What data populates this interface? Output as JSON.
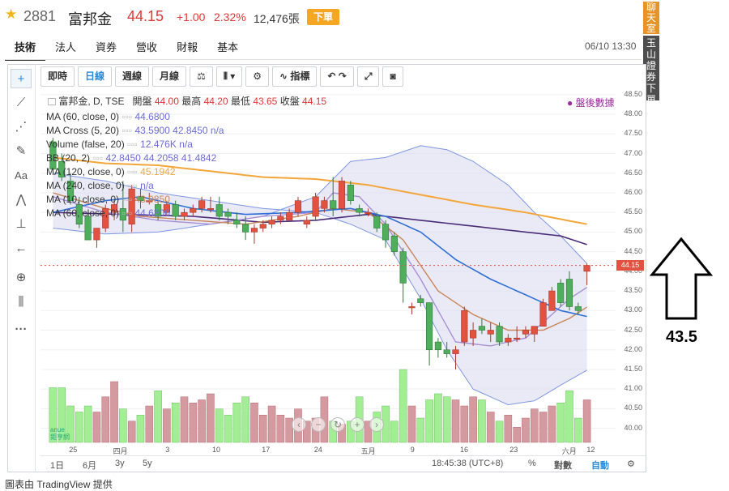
{
  "header": {
    "symbol_code": "2881",
    "symbol_name": "富邦金",
    "price": "44.15",
    "change": "+1.00",
    "change_pct": "2.32%",
    "volume": "12,476張",
    "order_button": "下單"
  },
  "tabs": [
    "技術",
    "法人",
    "資券",
    "營收",
    "財報",
    "基本"
  ],
  "datetime": "06/10 13:30",
  "side_buttons": {
    "chat": "聊天室",
    "broker": "玉山證券下單"
  },
  "toolbar": {
    "intraday": "即時",
    "daily": "日線",
    "weekly": "週線",
    "monthly": "月線",
    "balance_icon": "balance-scale-icon",
    "candle_icon": "candlestick-icon",
    "settings_icon": "gear-icon",
    "indicators": "指標",
    "undo_icon": "undo-icon",
    "redo_icon": "redo-icon",
    "fullscreen_icon": "fullscreen-icon",
    "camera_icon": "camera-icon"
  },
  "legend": {
    "title": "富邦金, D, TSE",
    "open_label": "開盤",
    "open": "44.00",
    "high_label": "最高",
    "high": "44.20",
    "low_label": "最低",
    "low": "43.65",
    "close_label": "收盤",
    "close": "44.15",
    "rows": [
      {
        "name": "MA (60, close, 0)",
        "value": "44.6800"
      },
      {
        "name": "MA Cross (5, 20)",
        "value": "43.5900  42.8450  n/a"
      },
      {
        "name": "Volume (false, 20)",
        "value": "12.476K  n/a"
      },
      {
        "name": "BB (20, 2)",
        "value": "42.8450  44.2058  41.4842"
      },
      {
        "name": "MA (120, close, 0)",
        "value": "45.1942"
      },
      {
        "name": "MA (240, close, 0)",
        "value": "n/a"
      },
      {
        "name": "MA (10, close, 0)",
        "value": "43.0850"
      },
      {
        "name": "MA (60, close, 0)",
        "value": "44.6800"
      }
    ]
  },
  "post_market": "● 盤後數據",
  "price_axis": [
    "48.50",
    "48.00",
    "47.50",
    "47.00",
    "46.50",
    "46.00",
    "45.50",
    "45.00",
    "44.50",
    "44.00",
    "43.50",
    "43.00",
    "42.50",
    "42.00",
    "41.50",
    "41.00",
    "40.50",
    "40.00"
  ],
  "last_price_tag": "44.15",
  "time_axis": [
    "25",
    "四月",
    "3",
    "10",
    "17",
    "24",
    "五月",
    "9",
    "16",
    "23",
    "六月",
    "12"
  ],
  "bottom": {
    "ranges": [
      "1日",
      "6月",
      "3y",
      "5y"
    ],
    "clock": "18:45:38 (UTC+8)",
    "percent": "%",
    "log": "對數",
    "auto": "自動"
  },
  "footer": "圖表由 TradingView 提供",
  "annotation_value": "43.5",
  "colors": {
    "up": "#e25241",
    "down": "#4fae5b",
    "bb_fill": "#d9d9ee",
    "ma120": "#f4a63a",
    "ma240": "#4b2c78",
    "ma_blue": "#2f6fd6",
    "ma_brown": "#c8865a",
    "ma_lav": "#a78fd6",
    "vol_up": "#d49aa0",
    "vol_down": "#a3ed95"
  },
  "chart_data": {
    "type": "candlestick",
    "ylim": [
      39.6,
      48.6
    ],
    "candles": [
      {
        "o": 47.3,
        "h": 47.4,
        "l": 46.5,
        "c": 46.6
      },
      {
        "o": 46.8,
        "h": 47.0,
        "l": 46.3,
        "c": 46.4
      },
      {
        "o": 46.3,
        "h": 46.5,
        "l": 45.7,
        "c": 45.8
      },
      {
        "o": 45.7,
        "h": 45.9,
        "l": 45.1,
        "c": 45.2
      },
      {
        "o": 45.4,
        "h": 45.5,
        "l": 44.8,
        "c": 44.8
      },
      {
        "o": 44.8,
        "h": 45.1,
        "l": 44.6,
        "c": 45.1
      },
      {
        "o": 45.1,
        "h": 45.7,
        "l": 45.0,
        "c": 45.6
      },
      {
        "o": 45.5,
        "h": 45.8,
        "l": 45.3,
        "c": 45.7
      },
      {
        "o": 45.6,
        "h": 46.3,
        "l": 45.0,
        "c": 45.3
      },
      {
        "o": 45.2,
        "h": 46.2,
        "l": 45.0,
        "c": 46.1
      },
      {
        "o": 45.9,
        "h": 46.1,
        "l": 45.6,
        "c": 45.8
      },
      {
        "o": 45.8,
        "h": 46.0,
        "l": 45.7,
        "c": 45.8
      },
      {
        "o": 45.7,
        "h": 45.8,
        "l": 45.3,
        "c": 45.4
      },
      {
        "o": 45.5,
        "h": 45.8,
        "l": 45.4,
        "c": 45.7
      },
      {
        "o": 45.7,
        "h": 45.8,
        "l": 45.3,
        "c": 45.4
      },
      {
        "o": 45.4,
        "h": 45.6,
        "l": 45.3,
        "c": 45.5
      },
      {
        "o": 45.5,
        "h": 45.7,
        "l": 45.4,
        "c": 45.6
      },
      {
        "o": 45.6,
        "h": 45.9,
        "l": 45.5,
        "c": 45.8
      },
      {
        "o": 45.6,
        "h": 45.9,
        "l": 45.5,
        "c": 45.6
      },
      {
        "o": 45.7,
        "h": 45.9,
        "l": 45.3,
        "c": 45.4
      },
      {
        "o": 45.5,
        "h": 45.6,
        "l": 45.2,
        "c": 45.4
      },
      {
        "o": 45.3,
        "h": 45.5,
        "l": 45.1,
        "c": 45.2
      },
      {
        "o": 45.2,
        "h": 45.4,
        "l": 44.8,
        "c": 45.0
      },
      {
        "o": 45.0,
        "h": 45.2,
        "l": 44.7,
        "c": 45.1
      },
      {
        "o": 45.1,
        "h": 45.3,
        "l": 45.0,
        "c": 45.2
      },
      {
        "o": 45.2,
        "h": 45.4,
        "l": 45.1,
        "c": 45.3
      },
      {
        "o": 45.3,
        "h": 45.5,
        "l": 45.2,
        "c": 45.4
      },
      {
        "o": 45.3,
        "h": 45.6,
        "l": 45.3,
        "c": 45.5
      },
      {
        "o": 45.5,
        "h": 45.9,
        "l": 45.4,
        "c": 45.8
      },
      {
        "o": 45.2,
        "h": 45.4,
        "l": 45.1,
        "c": 45.3
      },
      {
        "o": 45.4,
        "h": 46.0,
        "l": 45.3,
        "c": 45.9
      },
      {
        "o": 45.6,
        "h": 45.9,
        "l": 45.5,
        "c": 45.8
      },
      {
        "o": 45.8,
        "h": 46.4,
        "l": 45.4,
        "c": 45.6
      },
      {
        "o": 45.6,
        "h": 46.4,
        "l": 45.5,
        "c": 46.3
      },
      {
        "o": 46.2,
        "h": 46.3,
        "l": 45.7,
        "c": 45.8
      },
      {
        "o": 45.6,
        "h": 45.7,
        "l": 45.4,
        "c": 45.5
      },
      {
        "o": 45.5,
        "h": 45.6,
        "l": 45.4,
        "c": 45.5
      },
      {
        "o": 45.4,
        "h": 45.5,
        "l": 45.0,
        "c": 45.1
      },
      {
        "o": 45.2,
        "h": 45.3,
        "l": 44.6,
        "c": 44.8
      },
      {
        "o": 44.9,
        "h": 45.0,
        "l": 44.4,
        "c": 44.5
      },
      {
        "o": 44.5,
        "h": 44.6,
        "l": 43.2,
        "c": 43.7
      },
      {
        "o": 43.1,
        "h": 43.2,
        "l": 42.9,
        "c": 43.1
      },
      {
        "o": 43.3,
        "h": 43.4,
        "l": 43.1,
        "c": 43.2
      },
      {
        "o": 43.2,
        "h": 43.2,
        "l": 41.6,
        "c": 42.0
      },
      {
        "o": 42.2,
        "h": 42.3,
        "l": 41.8,
        "c": 42.0
      },
      {
        "o": 42.0,
        "h": 42.2,
        "l": 41.8,
        "c": 41.9
      },
      {
        "o": 41.9,
        "h": 42.1,
        "l": 41.5,
        "c": 42.0
      },
      {
        "o": 42.2,
        "h": 43.1,
        "l": 42.1,
        "c": 43.0
      },
      {
        "o": 42.3,
        "h": 42.7,
        "l": 42.1,
        "c": 42.5
      },
      {
        "o": 42.6,
        "h": 42.8,
        "l": 42.4,
        "c": 42.5
      },
      {
        "o": 42.4,
        "h": 42.7,
        "l": 42.2,
        "c": 42.5
      },
      {
        "o": 42.6,
        "h": 42.7,
        "l": 42.1,
        "c": 42.2
      },
      {
        "o": 42.2,
        "h": 42.4,
        "l": 42.1,
        "c": 42.3
      },
      {
        "o": 42.3,
        "h": 42.6,
        "l": 42.2,
        "c": 42.3
      },
      {
        "o": 42.4,
        "h": 42.6,
        "l": 42.3,
        "c": 42.5
      },
      {
        "o": 42.4,
        "h": 42.6,
        "l": 42.2,
        "c": 42.6
      },
      {
        "o": 42.6,
        "h": 43.3,
        "l": 42.6,
        "c": 43.2
      },
      {
        "o": 43.0,
        "h": 43.6,
        "l": 43.0,
        "c": 43.5
      },
      {
        "o": 43.7,
        "h": 43.8,
        "l": 43.1,
        "c": 43.2
      },
      {
        "o": 43.8,
        "h": 44.0,
        "l": 43.0,
        "c": 43.1
      },
      {
        "o": 43.1,
        "h": 43.2,
        "l": 42.9,
        "c": 43.0
      },
      {
        "o": 44.0,
        "h": 44.2,
        "l": 43.65,
        "c": 44.15
      }
    ],
    "volumes": [
      0.9,
      0.9,
      0.6,
      0.5,
      0.6,
      0.5,
      0.75,
      1.0,
      0.55,
      0.35,
      0.45,
      0.6,
      0.85,
      0.55,
      0.65,
      0.75,
      0.65,
      0.7,
      0.8,
      0.55,
      0.45,
      0.65,
      0.75,
      0.65,
      0.45,
      0.6,
      0.45,
      0.4,
      0.55,
      0.35,
      0.4,
      0.75,
      0.35,
      0.3,
      0.35,
      0.75,
      0.35,
      0.5,
      0.6,
      0.35,
      1.2,
      0.6,
      0.4,
      0.7,
      0.8,
      0.75,
      0.7,
      0.6,
      0.75,
      0.7,
      0.5,
      0.35,
      0.45,
      0.25,
      0.4,
      0.55,
      0.5,
      0.6,
      0.65,
      0.85,
      0.4,
      0.7
    ],
    "ma120": [
      [
        0,
        46.9
      ],
      [
        6,
        46.75
      ],
      [
        12,
        46.7
      ],
      [
        18,
        46.55
      ],
      [
        24,
        46.4
      ],
      [
        30,
        46.35
      ],
      [
        36,
        46.2
      ],
      [
        42,
        45.95
      ],
      [
        48,
        45.7
      ],
      [
        54,
        45.5
      ],
      [
        61,
        45.2
      ]
    ],
    "ma240": [
      [
        0,
        45.5
      ],
      [
        8,
        45.45
      ],
      [
        16,
        45.4
      ],
      [
        24,
        45.25
      ],
      [
        30,
        45.3
      ],
      [
        36,
        45.45
      ],
      [
        40,
        45.35
      ],
      [
        46,
        45.2
      ],
      [
        52,
        45.05
      ],
      [
        58,
        44.9
      ],
      [
        61,
        44.68
      ]
    ],
    "ma_blue": [
      [
        0,
        45.5
      ],
      [
        6,
        45.8
      ],
      [
        10,
        45.9
      ],
      [
        16,
        45.6
      ],
      [
        22,
        45.45
      ],
      [
        28,
        45.5
      ],
      [
        34,
        45.6
      ],
      [
        38,
        45.4
      ],
      [
        42,
        45.0
      ],
      [
        46,
        44.3
      ],
      [
        50,
        43.8
      ],
      [
        54,
        43.4
      ],
      [
        58,
        43.0
      ],
      [
        61,
        42.85
      ]
    ],
    "ma_brown": [
      [
        0,
        46.0
      ],
      [
        6,
        45.6
      ],
      [
        10,
        45.4
      ],
      [
        16,
        45.3
      ],
      [
        22,
        45.2
      ],
      [
        28,
        45.4
      ],
      [
        32,
        45.6
      ],
      [
        36,
        45.5
      ],
      [
        40,
        44.8
      ],
      [
        44,
        43.5
      ],
      [
        48,
        42.9
      ],
      [
        52,
        42.5
      ],
      [
        56,
        42.5
      ],
      [
        59,
        42.8
      ],
      [
        61,
        43.09
      ]
    ],
    "ma_lav": [
      [
        0,
        45.9
      ],
      [
        6,
        45.5
      ],
      [
        12,
        45.3
      ],
      [
        18,
        45.2
      ],
      [
        24,
        45.4
      ],
      [
        30,
        45.5
      ],
      [
        32,
        46.0
      ],
      [
        35,
        45.9
      ],
      [
        38,
        45.2
      ],
      [
        42,
        43.8
      ],
      [
        46,
        42.2
      ],
      [
        50,
        42.1
      ],
      [
        54,
        42.3
      ],
      [
        57,
        42.9
      ],
      [
        59,
        43.3
      ],
      [
        61,
        43.59
      ]
    ],
    "bb_upper": [
      [
        0,
        45.1
      ],
      [
        6,
        44.95
      ],
      [
        12,
        45.0
      ],
      [
        18,
        45.2
      ],
      [
        24,
        45.4
      ],
      [
        30,
        45.9
      ],
      [
        34,
        46.8
      ],
      [
        38,
        46.9
      ],
      [
        42,
        47.2
      ],
      [
        45,
        47.1
      ],
      [
        48,
        46.8
      ],
      [
        52,
        46.2
      ],
      [
        55,
        45.5
      ],
      [
        58,
        44.9
      ],
      [
        61,
        44.2
      ]
    ],
    "bb_lower": [
      [
        0,
        46.5
      ],
      [
        6,
        46.3
      ],
      [
        12,
        46.0
      ],
      [
        18,
        45.8
      ],
      [
        24,
        45.6
      ],
      [
        30,
        45.5
      ],
      [
        34,
        45.2
      ],
      [
        38,
        44.8
      ],
      [
        42,
        43.3
      ],
      [
        45,
        42.0
      ],
      [
        48,
        41.0
      ],
      [
        52,
        40.6
      ],
      [
        55,
        40.7
      ],
      [
        58,
        41.1
      ],
      [
        61,
        41.48
      ]
    ]
  }
}
